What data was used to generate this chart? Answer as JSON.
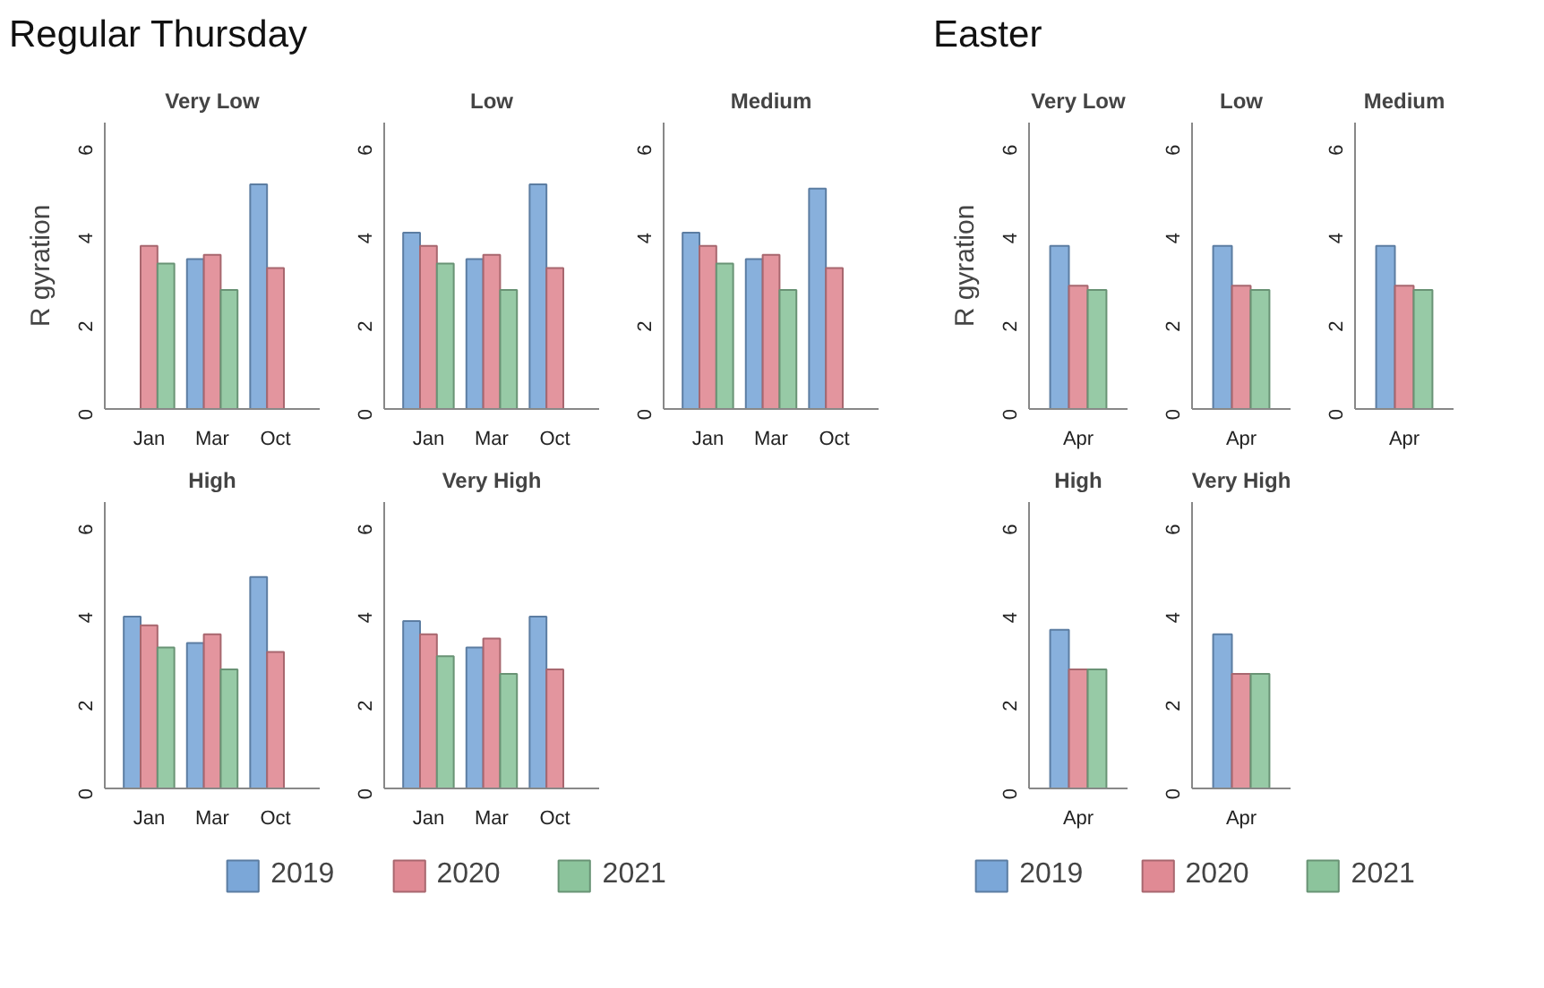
{
  "chart_data": [
    {
      "type": "bar",
      "title": "Very Low",
      "annotations": [
        "Regular Thursday"
      ],
      "ylabel": "R gyration",
      "legend": "bottom",
      "categories": [
        "Jan",
        "Mar",
        "Oct"
      ],
      "ylim": [
        0,
        6.5
      ],
      "yticks": [
        0,
        2,
        4,
        6
      ],
      "series": [
        {
          "name": "2019",
          "color": "#7ba7d8",
          "values": [
            null,
            3.4,
            5.1
          ]
        },
        {
          "name": "2020",
          "color": "#e08a94",
          "values": [
            3.7,
            3.5,
            3.2
          ]
        },
        {
          "name": "2021",
          "color": "#8cc49c",
          "values": [
            3.3,
            2.7,
            null
          ]
        }
      ]
    },
    {
      "type": "bar",
      "title": "Low",
      "categories": [
        "Jan",
        "Mar",
        "Oct"
      ],
      "ylim": [
        0,
        6.5
      ],
      "yticks": [
        0,
        2,
        4,
        6
      ],
      "series": [
        {
          "color": "#7ba7d8",
          "values": [
            4.0,
            3.4,
            5.1
          ]
        },
        {
          "color": "#e08a94",
          "values": [
            3.7,
            3.5,
            3.2
          ]
        },
        {
          "color": "#8cc49c",
          "values": [
            3.3,
            2.7,
            null
          ]
        }
      ]
    },
    {
      "type": "bar",
      "title": "Medium",
      "categories": [
        "Jan",
        "Mar",
        "Oct"
      ],
      "ylim": [
        0,
        6.5
      ],
      "yticks": [
        0,
        2,
        4,
        6
      ],
      "series": [
        {
          "color": "#7ba7d8",
          "values": [
            4.0,
            3.4,
            5.0
          ]
        },
        {
          "color": "#e08a94",
          "values": [
            3.7,
            3.5,
            3.2
          ]
        },
        {
          "color": "#8cc49c",
          "values": [
            3.3,
            2.7,
            null
          ]
        }
      ]
    },
    {
      "type": "bar",
      "title": "High",
      "categories": [
        "Jan",
        "Mar",
        "Oct"
      ],
      "ylim": [
        0,
        6.5
      ],
      "yticks": [
        0,
        2,
        4,
        6
      ],
      "series": [
        {
          "color": "#7ba7d8",
          "values": [
            3.9,
            3.3,
            4.8
          ]
        },
        {
          "color": "#e08a94",
          "values": [
            3.7,
            3.5,
            3.1
          ]
        },
        {
          "color": "#8cc49c",
          "values": [
            3.2,
            2.7,
            null
          ]
        }
      ]
    },
    {
      "type": "bar",
      "title": "Very High",
      "categories": [
        "Jan",
        "Mar",
        "Oct"
      ],
      "ylim": [
        0,
        6.5
      ],
      "yticks": [
        0,
        2,
        4,
        6
      ],
      "series": [
        {
          "color": "#7ba7d8",
          "values": [
            3.8,
            3.2,
            3.9
          ]
        },
        {
          "color": "#e08a94",
          "values": [
            3.5,
            3.4,
            2.7
          ]
        },
        {
          "color": "#8cc49c",
          "values": [
            3.0,
            2.6,
            null
          ]
        }
      ]
    },
    {
      "type": "bar",
      "title": "Very Low",
      "annotations": [
        "Easter"
      ],
      "ylabel": "R gyration",
      "legend": "bottom",
      "categories": [
        "Apr"
      ],
      "ylim": [
        0,
        6.5
      ],
      "yticks": [
        0,
        2,
        4,
        6
      ],
      "series": [
        {
          "name": "2019",
          "color": "#7ba7d8",
          "values": [
            3.7
          ]
        },
        {
          "name": "2020",
          "color": "#e08a94",
          "values": [
            2.8
          ]
        },
        {
          "name": "2021",
          "color": "#8cc49c",
          "values": [
            2.7
          ]
        }
      ]
    },
    {
      "type": "bar",
      "title": "Low",
      "categories": [
        "Apr"
      ],
      "ylim": [
        0,
        6.5
      ],
      "yticks": [
        0,
        2,
        4,
        6
      ],
      "series": [
        {
          "color": "#7ba7d8",
          "values": [
            3.7
          ]
        },
        {
          "color": "#e08a94",
          "values": [
            2.8
          ]
        },
        {
          "color": "#8cc49c",
          "values": [
            2.7
          ]
        }
      ]
    },
    {
      "type": "bar",
      "title": "Medium",
      "categories": [
        "Apr"
      ],
      "ylim": [
        0,
        6.5
      ],
      "yticks": [
        0,
        2,
        4,
        6
      ],
      "series": [
        {
          "color": "#7ba7d8",
          "values": [
            3.7
          ]
        },
        {
          "color": "#e08a94",
          "values": [
            2.8
          ]
        },
        {
          "color": "#8cc49c",
          "values": [
            2.7
          ]
        }
      ]
    },
    {
      "type": "bar",
      "title": "High",
      "categories": [
        "Apr"
      ],
      "ylim": [
        0,
        6.5
      ],
      "yticks": [
        0,
        2,
        4,
        6
      ],
      "series": [
        {
          "color": "#7ba7d8",
          "values": [
            3.6
          ]
        },
        {
          "color": "#e08a94",
          "values": [
            2.7
          ]
        },
        {
          "color": "#8cc49c",
          "values": [
            2.7
          ]
        }
      ]
    },
    {
      "type": "bar",
      "title": "Very High",
      "categories": [
        "Apr"
      ],
      "ylim": [
        0,
        6.5
      ],
      "yticks": [
        0,
        2,
        4,
        6
      ],
      "series": [
        {
          "color": "#7ba7d8",
          "values": [
            3.5
          ]
        },
        {
          "color": "#e08a94",
          "values": [
            2.6
          ]
        },
        {
          "color": "#8cc49c",
          "values": [
            2.6
          ]
        }
      ]
    }
  ]
}
